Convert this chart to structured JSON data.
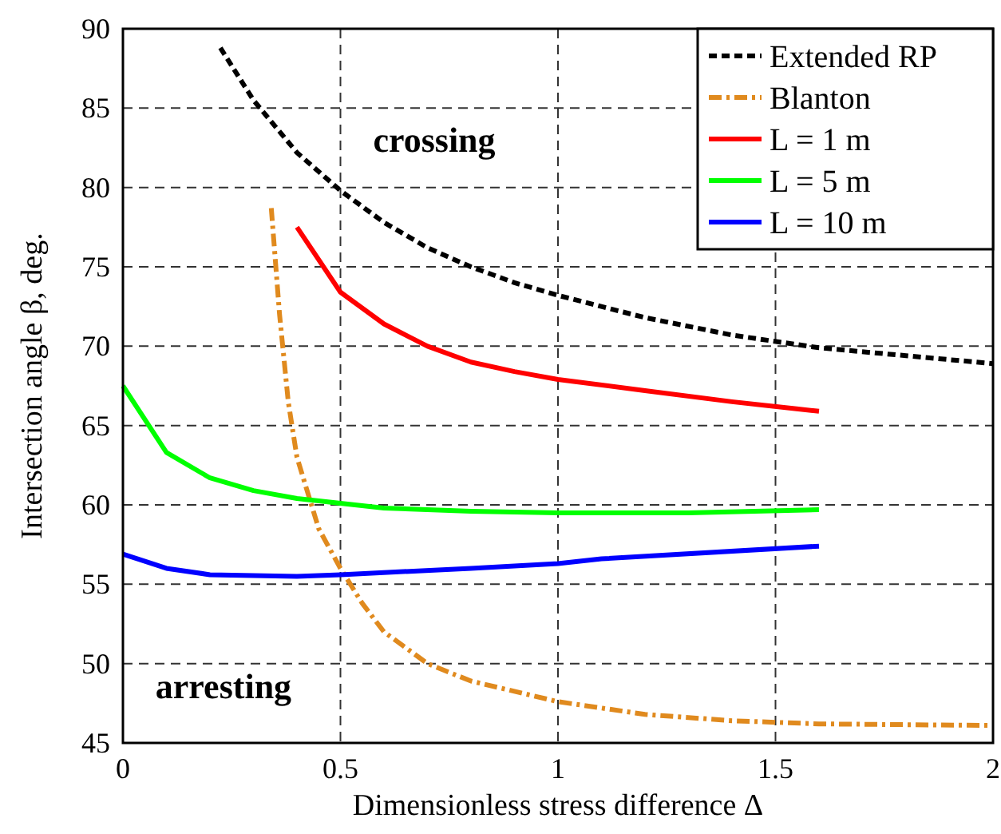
{
  "chart_data": {
    "type": "line",
    "xlabel": "Dimensionless stress difference Δ",
    "ylabel": "Intersection angle β, deg.",
    "xlim": [
      0,
      2
    ],
    "xticks": [
      0,
      0.5,
      1,
      1.5,
      2
    ],
    "ylim": [
      45,
      90
    ],
    "yticks": [
      45,
      50,
      55,
      60,
      65,
      70,
      75,
      80,
      85,
      90
    ],
    "grid": true,
    "legend": "top right",
    "series": [
      {
        "name": "Extended RP",
        "color": "#000000",
        "line_style": "dotted",
        "x": [
          0.224,
          0.3,
          0.4,
          0.5,
          0.6,
          0.7,
          0.8,
          0.9,
          1.0,
          1.2,
          1.4,
          1.6,
          1.8,
          2.0
        ],
        "values": [
          88.8,
          85.5,
          82.2,
          79.8,
          77.8,
          76.2,
          75,
          74,
          73.2,
          71.8,
          70.7,
          69.9,
          69.4,
          68.9
        ]
      },
      {
        "name": "Blanton",
        "color": "#e08a1e",
        "line_style": "dashdot",
        "x": [
          0.341,
          0.36,
          0.38,
          0.4,
          0.45,
          0.5,
          0.55,
          0.6,
          0.7,
          0.8,
          1.0,
          1.2,
          1.4,
          1.6,
          2.0
        ],
        "values": [
          78.7,
          72,
          66.5,
          63,
          58.5,
          56,
          53.8,
          52,
          50,
          48.9,
          47.6,
          46.8,
          46.4,
          46.2,
          46.1
        ]
      },
      {
        "name": "L = 1 m",
        "color": "#ff0000",
        "line_style": "solid",
        "x": [
          0.4,
          0.5,
          0.6,
          0.7,
          0.8,
          0.9,
          1.0,
          1.2,
          1.4,
          1.6
        ],
        "values": [
          77.5,
          73.4,
          71.4,
          70.0,
          69.0,
          68.4,
          67.9,
          67.2,
          66.5,
          65.9
        ]
      },
      {
        "name": "L = 5 m",
        "color": "#00ff00",
        "line_style": "solid",
        "x": [
          0,
          0.1,
          0.2,
          0.3,
          0.4,
          0.5,
          0.6,
          0.8,
          1.0,
          1.3,
          1.6
        ],
        "values": [
          67.5,
          63.3,
          61.7,
          60.9,
          60.4,
          60.1,
          59.8,
          59.6,
          59.5,
          59.5,
          59.7
        ]
      },
      {
        "name": "L = 10 m",
        "color": "#0000ff",
        "line_style": "solid",
        "x": [
          0,
          0.1,
          0.2,
          0.4,
          0.5,
          0.8,
          1.0,
          1.1,
          1.6
        ],
        "values": [
          56.9,
          56.0,
          55.6,
          55.5,
          55.6,
          56.0,
          56.3,
          56.6,
          57.4
        ]
      }
    ],
    "annotations": [
      "crossing",
      "arresting"
    ]
  }
}
